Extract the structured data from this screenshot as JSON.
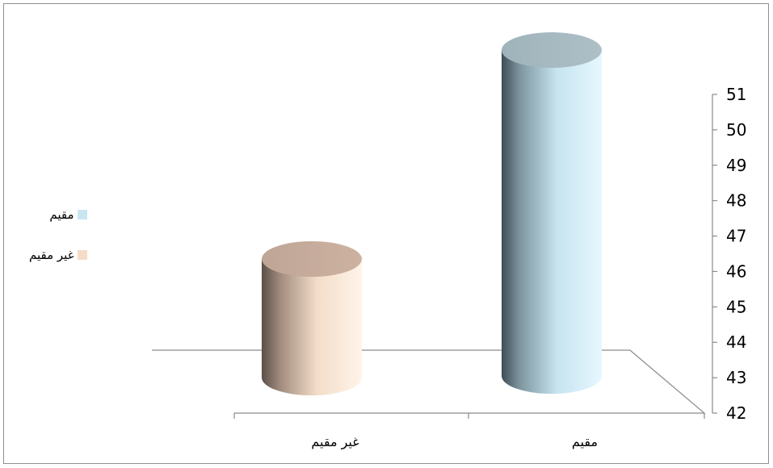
{
  "chart_data": {
    "type": "bar",
    "style": "3d-cylinder",
    "categories": [
      "غير مقيم",
      "مقيم"
    ],
    "values": [
      45.6,
      51.5
    ],
    "colors": [
      "#f0d8c2",
      "#c9e6f0"
    ],
    "ylim": [
      42,
      51
    ],
    "yticks": [
      42,
      43,
      44,
      45,
      46,
      47,
      48,
      49,
      50,
      51
    ],
    "y_axis_side": "right",
    "grid": false,
    "legend": {
      "placement": "left",
      "entries": [
        {
          "label": "مقيم",
          "color": "#c9e6f0"
        },
        {
          "label": "غير مقيم",
          "color": "#f5dcc8"
        }
      ]
    },
    "title": "",
    "xlabel": "",
    "ylabel": ""
  }
}
